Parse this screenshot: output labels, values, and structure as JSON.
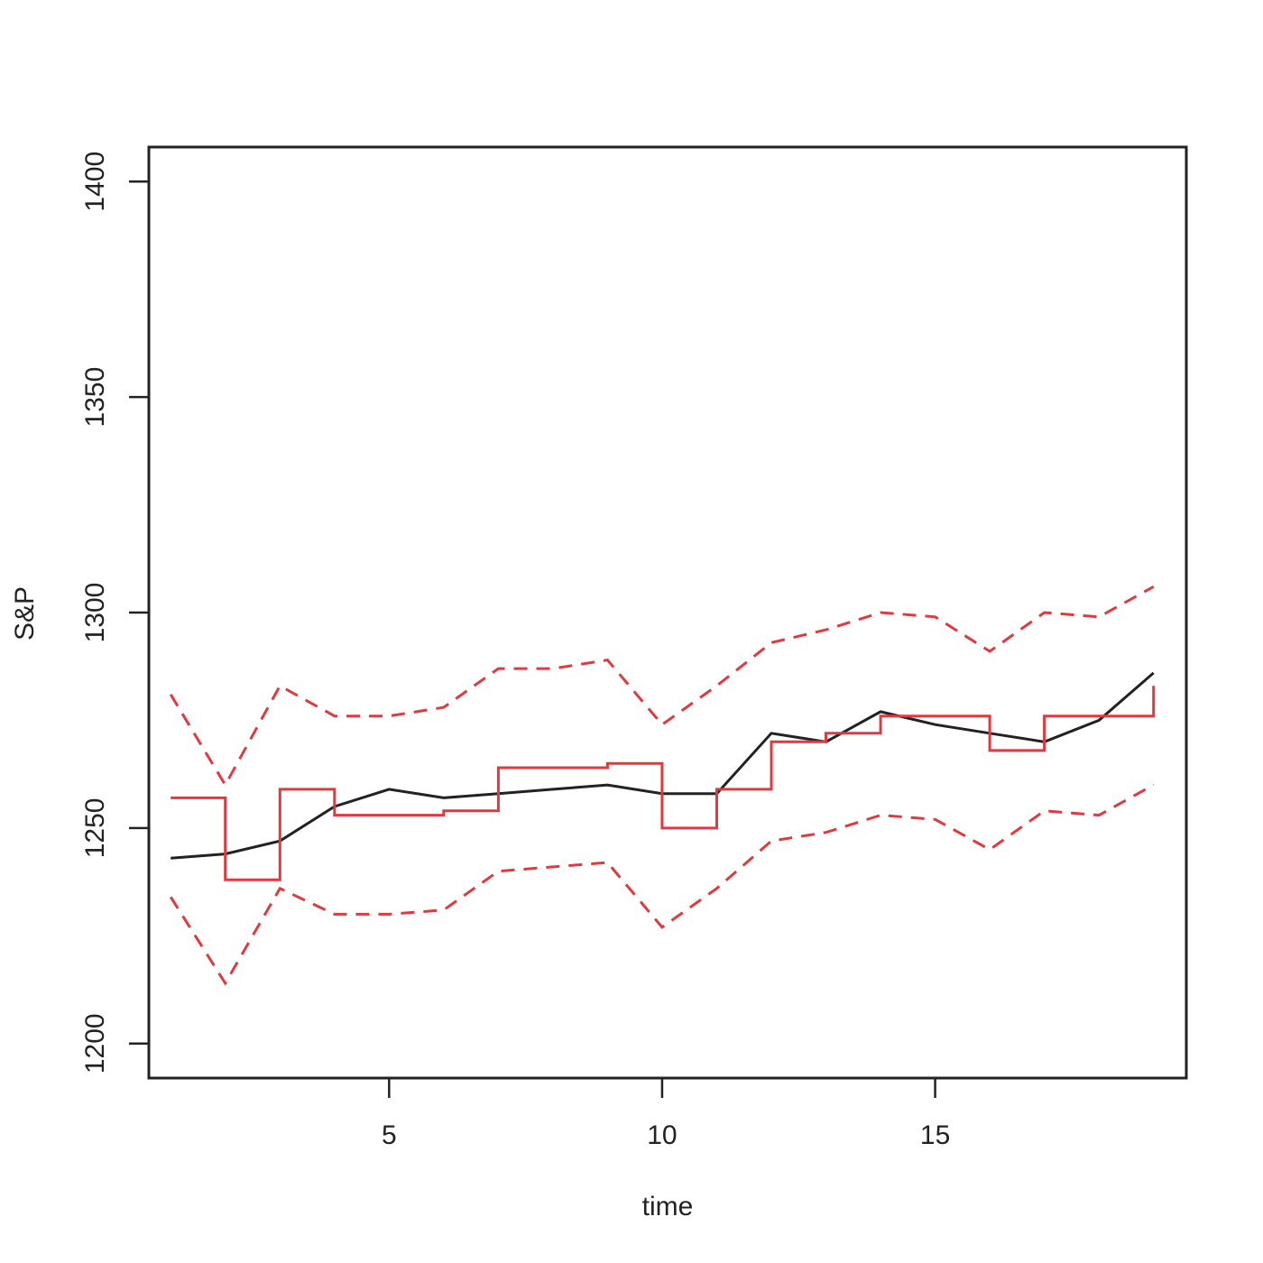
{
  "chart_data": {
    "type": "line",
    "title": "",
    "xlabel": "time",
    "ylabel": "S&P",
    "xlim": [
      0.6,
      19.6
    ],
    "ylim": [
      1192,
      1408
    ],
    "x_ticks": [
      5,
      10,
      15
    ],
    "y_ticks": [
      1200,
      1250,
      1300,
      1350,
      1400
    ],
    "grid": false,
    "legend": "none",
    "series": [
      {
        "style": "solid",
        "color": "#222222",
        "drawstyle": "line",
        "x": [
          1,
          2,
          3,
          4,
          5,
          6,
          7,
          8,
          9,
          10,
          11,
          12,
          13,
          14,
          15,
          16,
          17,
          18,
          19
        ],
        "values": [
          1243,
          1244,
          1247,
          1255,
          1259,
          1257,
          1258,
          1259,
          1260,
          1258,
          1258,
          1272,
          1270,
          1277,
          1274,
          1272,
          1270,
          1275,
          1286
        ]
      },
      {
        "style": "solid",
        "color": "#e03a3e",
        "drawstyle": "steps-post",
        "x": [
          1,
          2,
          3,
          4,
          5,
          6,
          7,
          8,
          9,
          10,
          11,
          12,
          13,
          14,
          15,
          16,
          17,
          18,
          19
        ],
        "values": [
          1257,
          1238,
          1259,
          1253,
          1253,
          1254,
          1264,
          1264,
          1265,
          1250,
          1259,
          1270,
          1272,
          1276,
          1276,
          1268,
          1276,
          1276,
          1283
        ]
      },
      {
        "style": "dashed",
        "color": "#e03a3e",
        "drawstyle": "line",
        "x": [
          1,
          2,
          3,
          4,
          5,
          6,
          7,
          8,
          9,
          10,
          11,
          12,
          13,
          14,
          15,
          16,
          17,
          18,
          19
        ],
        "values": [
          1281,
          1260,
          1283,
          1276,
          1276,
          1278,
          1287,
          1287,
          1289,
          1274,
          1283,
          1293,
          1296,
          1300,
          1299,
          1291,
          1300,
          1299,
          1306
        ]
      },
      {
        "style": "dashed",
        "color": "#e03a3e",
        "drawstyle": "line",
        "x": [
          1,
          2,
          3,
          4,
          5,
          6,
          7,
          8,
          9,
          10,
          11,
          12,
          13,
          14,
          15,
          16,
          17,
          18,
          19
        ],
        "values": [
          1234,
          1214,
          1236,
          1230,
          1230,
          1231,
          1240,
          1241,
          1242,
          1227,
          1236,
          1247,
          1249,
          1253,
          1252,
          1245,
          1254,
          1253,
          1260
        ]
      }
    ]
  }
}
